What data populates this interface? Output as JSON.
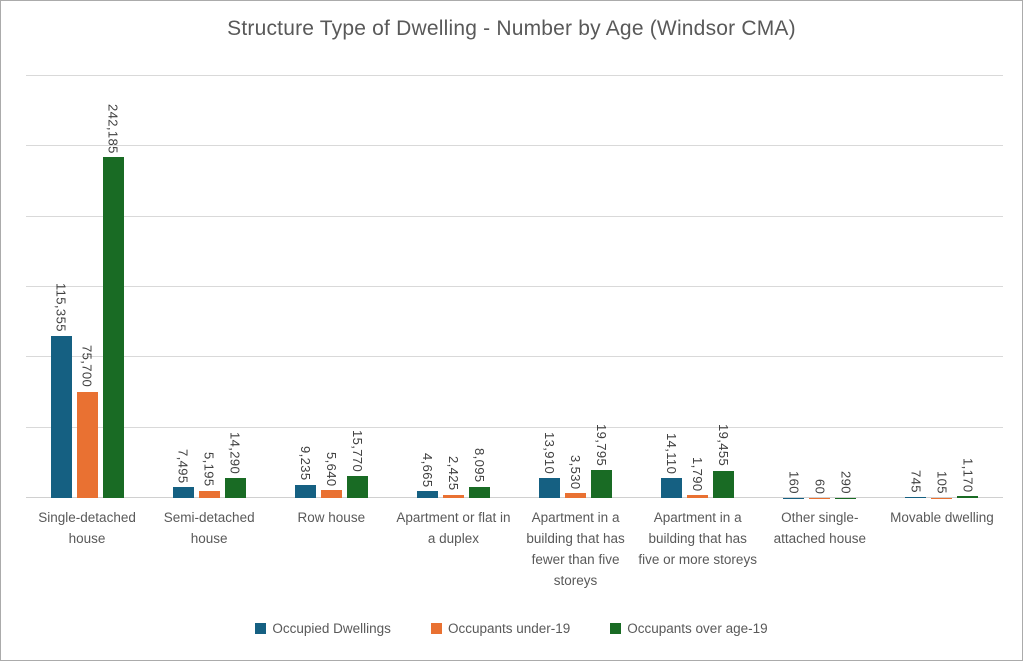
{
  "title": "Structure Type of Dwelling - Number by Age (Windsor CMA)",
  "colors": {
    "series_occupied_dwellings": "#156082",
    "series_occupants_under_19": "#E97132",
    "series_occupants_over_19": "#196B24",
    "gridline": "#D9D9D9",
    "title_text": "#595959",
    "data_label_text": "#404040",
    "category_text": "#595959",
    "frame_border": "#ABABAB",
    "background": "#FFFFFF"
  },
  "chart_data": {
    "type": "bar",
    "title": "Structure Type of Dwelling - Number by Age (Windsor CMA)",
    "xlabel": "",
    "ylabel": "",
    "ylim": [
      0,
      300000
    ],
    "gridline_interval": 50000,
    "grid": true,
    "y_axis_tick_labels_visible": false,
    "legend_position": "bottom",
    "data_label_style": "rotated-90-outside-end",
    "categories": [
      "Single-detached house",
      "Semi-detached house",
      "Row house",
      "Apartment or flat in a duplex",
      "Apartment in a building that has fewer than five storeys",
      "Apartment in a building that has five or more storeys",
      "Other single-attached house",
      "Movable dwelling"
    ],
    "series": [
      {
        "name": "Occupied Dwellings",
        "color": "#156082",
        "values": [
          115355,
          7495,
          9235,
          4665,
          13910,
          14110,
          160,
          745
        ],
        "labels": [
          "115,355",
          "7,495",
          "9,235",
          "4,665",
          "13,910",
          "14,110",
          "160",
          "745"
        ]
      },
      {
        "name": "Occupants under-19",
        "color": "#E97132",
        "values": [
          75700,
          5195,
          5640,
          2425,
          3530,
          1790,
          60,
          105
        ],
        "labels": [
          "75,700",
          "5,195",
          "5,640",
          "2,425",
          "3,530",
          "1,790",
          "60",
          "105"
        ]
      },
      {
        "name": "Occupants over age-19",
        "color": "#196B24",
        "values": [
          242185,
          14290,
          15770,
          8095,
          19795,
          19455,
          290,
          1170
        ],
        "labels": [
          "242,185",
          "14,290",
          "15,770",
          "8,095",
          "19,795",
          "19,455",
          "290",
          "1,170"
        ]
      }
    ]
  }
}
